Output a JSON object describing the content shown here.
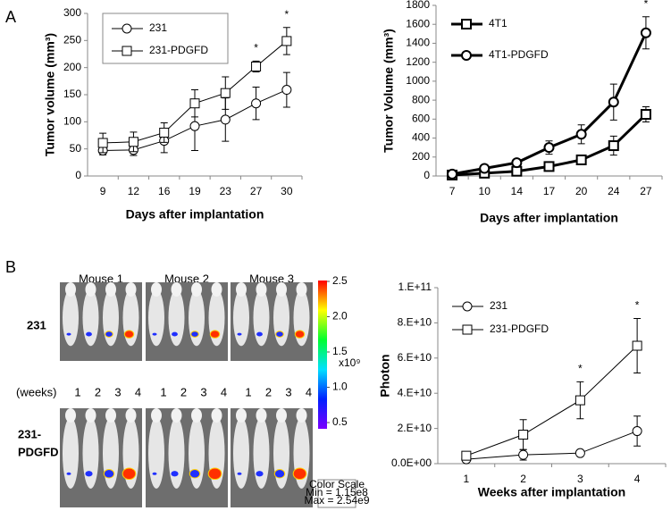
{
  "panels": [
    "A",
    "B"
  ],
  "chart_data": [
    {
      "type": "line",
      "x_label": "Days after implantation",
      "y_label": "Tumor volume (mm³)",
      "categories": [
        "9",
        "12",
        "16",
        "19",
        "23",
        "27",
        "30"
      ],
      "ylim": [
        0,
        300
      ],
      "yticks": [
        0,
        50,
        100,
        150,
        200,
        250,
        300
      ],
      "legend": "top-left",
      "series": [
        {
          "name": "231",
          "color": "#000000",
          "marker": "circle",
          "values": [
            47,
            48,
            65,
            92,
            104,
            134,
            159
          ],
          "errors": [
            8,
            10,
            22,
            45,
            40,
            30,
            32
          ]
        },
        {
          "name": "231-PDGFD",
          "color": "#000000",
          "marker": "square",
          "values": [
            61,
            63,
            80,
            134,
            153,
            202,
            249
          ],
          "errors": [
            18,
            18,
            18,
            25,
            30,
            10,
            25
          ]
        }
      ],
      "annotations": [
        {
          "text": "*",
          "x": "27"
        },
        {
          "text": "*",
          "x": "30"
        }
      ]
    },
    {
      "type": "line",
      "x_label": "Days after implantation",
      "y_label": "Tumor Volume (mm³)",
      "categories": [
        "7",
        "10",
        "14",
        "17",
        "20",
        "24",
        "27"
      ],
      "ylim": [
        0,
        1800
      ],
      "yticks": [
        0,
        200,
        400,
        600,
        800,
        1000,
        1200,
        1400,
        1600,
        1800
      ],
      "legend": "top-left",
      "series": [
        {
          "name": "4T1",
          "color": "#000000",
          "marker": "square",
          "values": [
            10,
            30,
            50,
            100,
            170,
            320,
            650
          ],
          "errors": [
            5,
            10,
            10,
            20,
            30,
            100,
            80
          ]
        },
        {
          "name": "4T1-PDGFD",
          "color": "#000000",
          "marker": "circle",
          "values": [
            20,
            80,
            140,
            300,
            440,
            780,
            1510
          ],
          "errors": [
            10,
            20,
            20,
            70,
            100,
            190,
            170
          ]
        }
      ],
      "annotations": [
        {
          "text": "*",
          "x": "27"
        }
      ]
    },
    {
      "type": "line",
      "x_label": "Weeks after implantation",
      "y_label": "Photon",
      "categories": [
        "1",
        "2",
        "3",
        "4"
      ],
      "ylim": [
        0,
        100000000000
      ],
      "yticks": [
        {
          "value": 0,
          "label": "0.0E+00"
        },
        {
          "value": 20000000000,
          "label": "2.E+10"
        },
        {
          "value": 40000000000,
          "label": "4.E+10"
        },
        {
          "value": 60000000000,
          "label": "6.E+10"
        },
        {
          "value": 80000000000,
          "label": "8.E+10"
        },
        {
          "value": 100000000000,
          "label": "1.E+11"
        }
      ],
      "legend": "top-left",
      "series": [
        {
          "name": "231",
          "color": "#000000",
          "marker": "circle",
          "values": [
            2500000000,
            5000000000,
            6000000000,
            18500000000
          ],
          "errors": [
            1000000000,
            3000000000,
            1500000000,
            8500000000
          ]
        },
        {
          "name": "231-PDGFD",
          "color": "#000000",
          "marker": "square",
          "values": [
            4500000000,
            16500000000,
            36000000000,
            67000000000
          ],
          "errors": [
            1500000000,
            8500000000,
            10500000000,
            15500000000
          ]
        }
      ],
      "annotations": [
        {
          "text": "*",
          "x": "3"
        },
        {
          "text": "*",
          "x": "4"
        }
      ]
    }
  ],
  "imaging": {
    "mice": [
      "Mouse 1",
      "Mouse 2",
      "Mouse 3"
    ],
    "rows": [
      [
        "231"
      ],
      [
        "231-",
        "PDGFD"
      ]
    ],
    "weeks_label": "(weeks)",
    "weeks": [
      1,
      2,
      3,
      4
    ],
    "colorbar": {
      "ticks": [
        0.5,
        {
          "value": 1,
          "label": "1.0"
        },
        1.5,
        {
          "value": 2,
          "label": "2.0"
        },
        2.5
      ],
      "unit": "x10⁹"
    },
    "color_scale": [
      "Color Scale",
      "Min = 1.15e8",
      "Max = 2.54e9"
    ]
  }
}
